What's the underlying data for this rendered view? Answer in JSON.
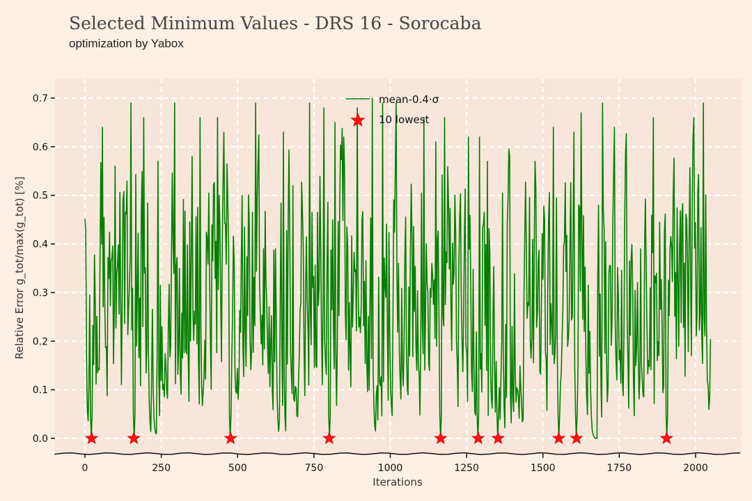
{
  "chart_data": {
    "type": "line",
    "title": "Selected Minimum Values - DRS 16 - Sorocaba",
    "subtitle": "optimization by Yabox",
    "xlabel": "Iterations",
    "ylabel": "Relative Error g_tot/max(g_tot) [%]",
    "xlim": [
      -100,
      2160
    ],
    "ylim": [
      -0.03,
      0.74
    ],
    "xticks": [
      0,
      250,
      500,
      750,
      1000,
      1250,
      1500,
      1750,
      2000
    ],
    "yticks": [
      0.0,
      0.1,
      0.2,
      0.3,
      0.4,
      0.5,
      0.6,
      0.7
    ],
    "xtick_labels": [
      "0",
      "250",
      "500",
      "750",
      "1000",
      "1250",
      "1500",
      "1750",
      "2000"
    ],
    "ytick_labels": [
      "0.0",
      "0.1",
      "0.2",
      "0.3",
      "0.4",
      "0.5",
      "0.6",
      "0.7"
    ],
    "grid": true,
    "legend_position": "top-center",
    "series": [
      {
        "name": "mean-0.4·σ",
        "color": "#008000",
        "style": "line",
        "x_range": [
          0,
          2050
        ],
        "value_range": [
          0.0,
          0.7
        ],
        "peaks": [
          [
            58,
            0.64
          ],
          [
            100,
            0.56
          ],
          [
            152,
            0.69
          ],
          [
            192,
            0.66
          ],
          [
            238,
            0.57
          ],
          [
            295,
            0.69
          ],
          [
            350,
            0.58
          ],
          [
            378,
            0.66
          ],
          [
            435,
            0.66
          ],
          [
            455,
            0.63
          ],
          [
            558,
            0.69
          ],
          [
            650,
            0.63
          ],
          [
            682,
            0.52
          ],
          [
            735,
            0.69
          ],
          [
            782,
            0.68
          ],
          [
            818,
            0.65
          ],
          [
            848,
            0.62
          ],
          [
            892,
            0.68
          ],
          [
            940,
            0.7
          ],
          [
            975,
            0.69
          ],
          [
            1020,
            0.69
          ],
          [
            1110,
            0.66
          ],
          [
            1150,
            0.61
          ],
          [
            1178,
            0.66
          ],
          [
            1255,
            0.62
          ],
          [
            1291,
            0.62
          ],
          [
            1318,
            0.57
          ],
          [
            1352,
            0.63
          ],
          [
            1390,
            0.58
          ],
          [
            1473,
            0.57
          ],
          [
            1535,
            0.64
          ],
          [
            1601,
            0.63
          ],
          [
            1625,
            0.67
          ],
          [
            1695,
            0.69
          ],
          [
            1733,
            0.64
          ],
          [
            1862,
            0.66
          ],
          [
            1995,
            0.66
          ],
          [
            2025,
            0.69
          ]
        ]
      },
      {
        "name": "10 lowest",
        "color": "#ff1111",
        "style": "star",
        "x": [
          22,
          160,
          477,
          800,
          1165,
          1288,
          1353,
          1552,
          1610,
          1905
        ],
        "y": [
          0,
          0,
          0,
          0,
          0,
          0,
          0,
          0,
          0,
          0
        ]
      }
    ],
    "annotation_colors": {
      "grid": "#ffffff",
      "axis": "#111111",
      "plot_background": "#f8e6da"
    }
  }
}
